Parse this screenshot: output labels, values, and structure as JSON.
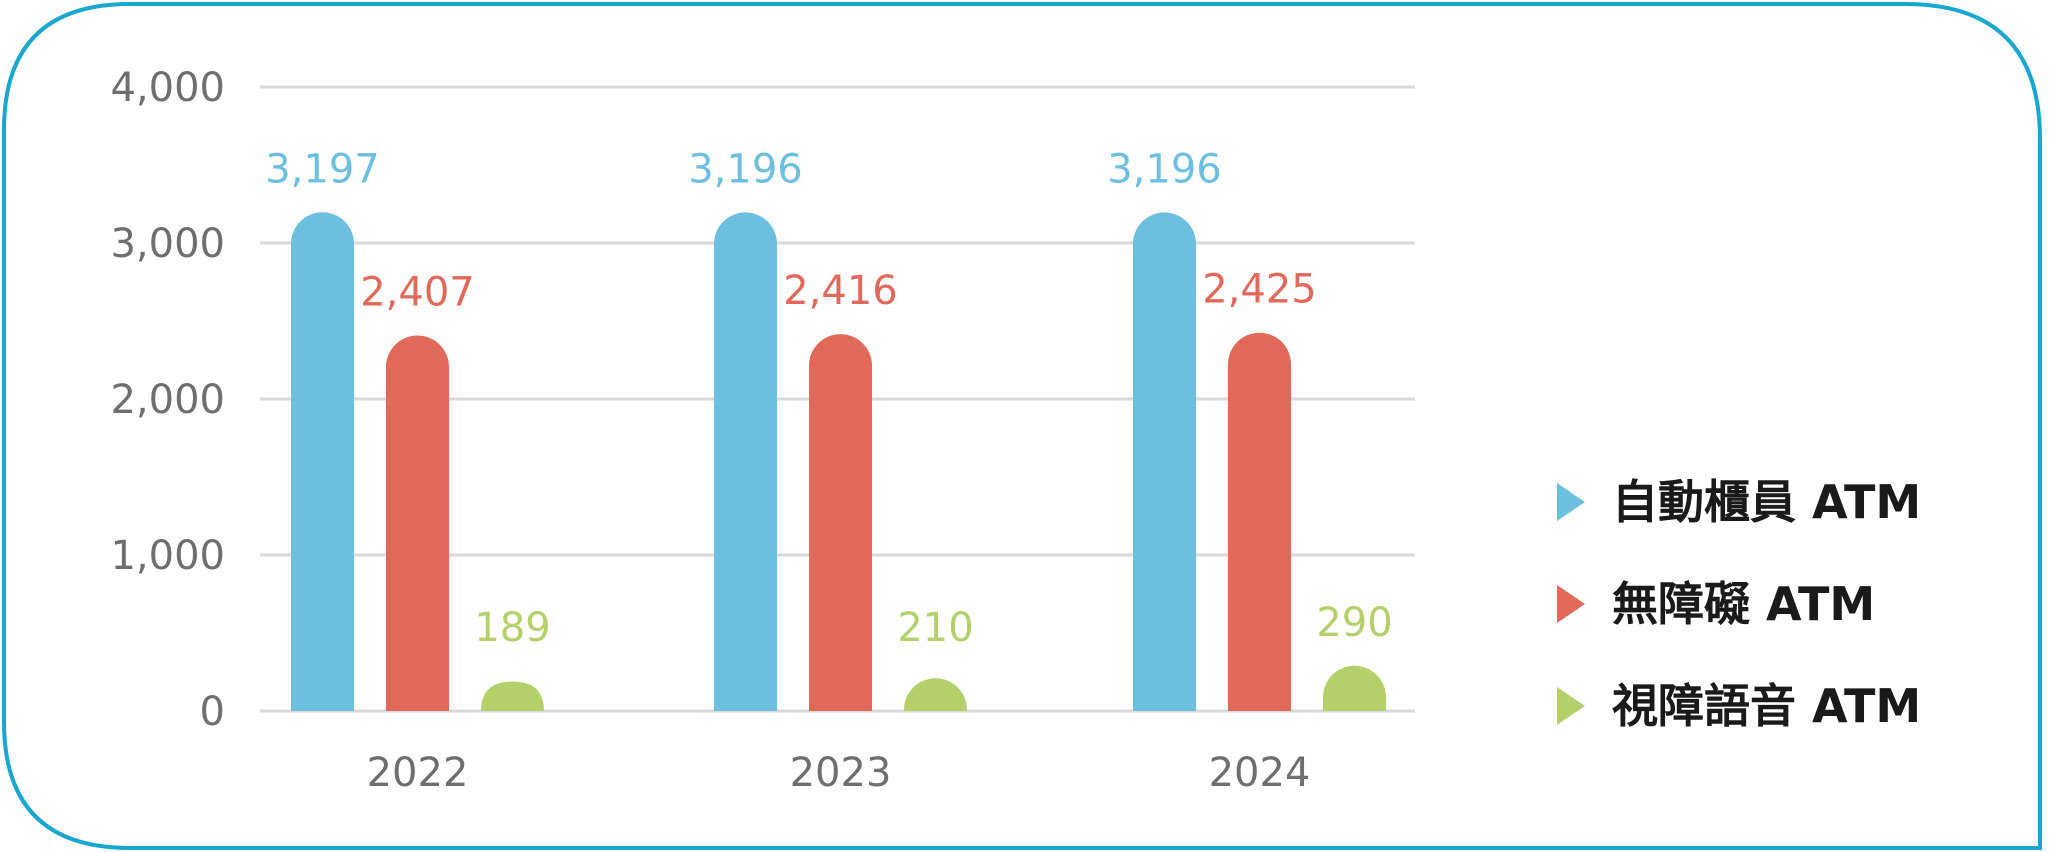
{
  "chart_data": {
    "type": "bar",
    "categories": [
      "2022",
      "2023",
      "2024"
    ],
    "series": [
      {
        "name": "自動櫃員 ATM",
        "color": "#6dbfdf",
        "values": [
          3197,
          3196,
          3196
        ],
        "labels": [
          "3,197",
          "3,196",
          "3,196"
        ]
      },
      {
        "name": "無障礙 ATM",
        "color": "#e0695a",
        "values": [
          2407,
          2416,
          2425
        ],
        "labels": [
          "2,407",
          "2,416",
          "2,425"
        ]
      },
      {
        "name": "視障語音 ATM",
        "color": "#b5d06a",
        "values": [
          189,
          210,
          290
        ],
        "labels": [
          "189",
          "210",
          "290"
        ]
      }
    ],
    "ylim": [
      0,
      4000
    ],
    "yticks": [
      0,
      1000,
      2000,
      3000,
      4000
    ],
    "ytick_labels": [
      "0",
      "1,000",
      "2,000",
      "3,000",
      "4,000"
    ],
    "grid": true,
    "legend_position": "right",
    "frame_color": "#1aa7cf",
    "grid_color": "#d9d9d9"
  }
}
